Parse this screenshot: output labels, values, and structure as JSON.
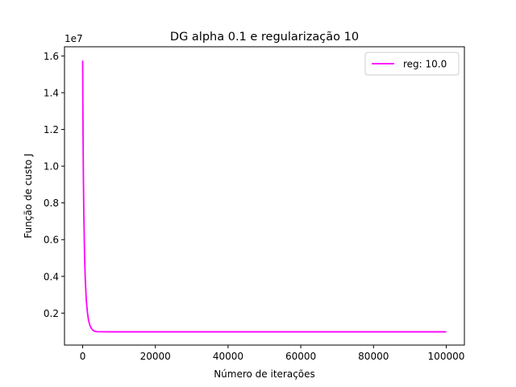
{
  "chart_data": {
    "type": "line",
    "title": "DG alpha 0.1 e regularização 10",
    "xlabel": "Número de iterações",
    "ylabel": "Função de custo J",
    "y_offset_label": "1e7",
    "xlim": [
      -5000,
      105000
    ],
    "ylim": [
      260000,
      16500000
    ],
    "x_ticks": [
      0,
      20000,
      40000,
      60000,
      80000,
      100000
    ],
    "x_tick_labels": [
      "0",
      "20000",
      "40000",
      "60000",
      "80000",
      "100000"
    ],
    "y_ticks": [
      2000000,
      4000000,
      6000000,
      8000000,
      10000000,
      12000000,
      14000000,
      16000000
    ],
    "y_tick_labels": [
      "0.2",
      "0.4",
      "0.6",
      "0.8",
      "1.0",
      "1.2",
      "1.4",
      "1.6"
    ],
    "grid": false,
    "legend_position": "upper-right",
    "series": [
      {
        "name": "reg: 10.0",
        "color": "#ff00ff",
        "x": [
          0,
          50,
          100,
          200,
          300,
          500,
          700,
          1000,
          1300,
          1600,
          2000,
          2500,
          3000,
          3500,
          4000,
          5000,
          6000,
          8000,
          10000,
          20000,
          40000,
          60000,
          80000,
          100000
        ],
        "y": [
          15750000,
          13600000,
          11800000,
          9400000,
          7600000,
          5300000,
          3900000,
          2700000,
          2050000,
          1620000,
          1330000,
          1130000,
          1040000,
          1005000,
          990000,
          985000,
          983000,
          982000,
          982000,
          982000,
          982000,
          982000,
          982000,
          982000
        ]
      }
    ]
  }
}
